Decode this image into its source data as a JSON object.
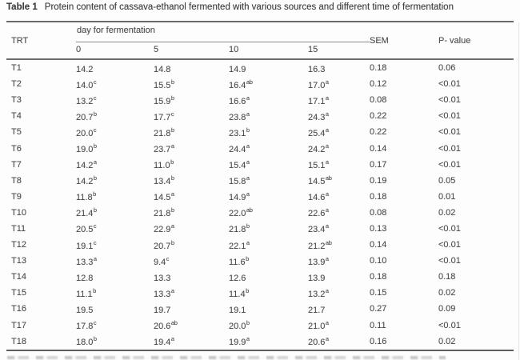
{
  "title": {
    "label": "Table 1",
    "text": "Protein content of cassava-ethanol fermented with various sources and different time of fermentation"
  },
  "table": {
    "col_trt": "TRT",
    "group_header": "day for fermentation",
    "day_cols": [
      "0",
      "5",
      "10",
      "15"
    ],
    "col_sem": "SEM",
    "col_p": "P- value",
    "rows": [
      {
        "trt": "T1",
        "days": [
          [
            "14.2",
            ""
          ],
          [
            "14.8",
            ""
          ],
          [
            "14.9",
            ""
          ],
          [
            "16.3",
            ""
          ]
        ],
        "sem": "0.18",
        "p": "0.06"
      },
      {
        "trt": "T2",
        "days": [
          [
            "14.0",
            "c"
          ],
          [
            "15.5",
            "b"
          ],
          [
            "16.4",
            "ab"
          ],
          [
            "17.0",
            "a"
          ]
        ],
        "sem": "0.12",
        "p": "<0.01"
      },
      {
        "trt": "T3",
        "days": [
          [
            "13.2",
            "c"
          ],
          [
            "15.9",
            "b"
          ],
          [
            "16.6",
            "a"
          ],
          [
            "17.1",
            "a"
          ]
        ],
        "sem": "0.08",
        "p": "<0.01"
      },
      {
        "trt": "T4",
        "days": [
          [
            "20.7",
            "b"
          ],
          [
            "17.7",
            "c"
          ],
          [
            "23.8",
            "a"
          ],
          [
            "24.3",
            "a"
          ]
        ],
        "sem": "0.22",
        "p": "<0.01"
      },
      {
        "trt": "T5",
        "days": [
          [
            "20.0",
            "c"
          ],
          [
            "21.8",
            "b"
          ],
          [
            "23.1",
            "b"
          ],
          [
            "25.4",
            "a"
          ]
        ],
        "sem": "0.22",
        "p": "<0.01"
      },
      {
        "trt": "T6",
        "days": [
          [
            "19.0",
            "b"
          ],
          [
            "23.7",
            "a"
          ],
          [
            "24.4",
            "a"
          ],
          [
            "24.2",
            "a"
          ]
        ],
        "sem": "0.14",
        "p": "<0.01"
      },
      {
        "trt": "T7",
        "days": [
          [
            "14.2",
            "a"
          ],
          [
            "11.0",
            "b"
          ],
          [
            "15.4",
            "a"
          ],
          [
            "15.1",
            "a"
          ]
        ],
        "sem": "0.17",
        "p": "<0.01"
      },
      {
        "trt": "T8",
        "days": [
          [
            "14.2",
            "b"
          ],
          [
            "13.4",
            "b"
          ],
          [
            "15.8",
            "a"
          ],
          [
            "14.5",
            "ab"
          ]
        ],
        "sem": "0.19",
        "p": "0.05"
      },
      {
        "trt": "T9",
        "days": [
          [
            "11.8",
            "b"
          ],
          [
            "14.5",
            "a"
          ],
          [
            "14.9",
            "a"
          ],
          [
            "14.6",
            "a"
          ]
        ],
        "sem": "0.18",
        "p": "0.01"
      },
      {
        "trt": "T10",
        "days": [
          [
            "21.4",
            "b"
          ],
          [
            "21.8",
            "b"
          ],
          [
            "22.0",
            "ab"
          ],
          [
            "22.6",
            "a"
          ]
        ],
        "sem": "0.08",
        "p": "0.02"
      },
      {
        "trt": "T11",
        "days": [
          [
            "20.5",
            "c"
          ],
          [
            "22.9",
            "a"
          ],
          [
            "21.8",
            "b"
          ],
          [
            "23.4",
            "a"
          ]
        ],
        "sem": "0.13",
        "p": "<0.01"
      },
      {
        "trt": "T12",
        "days": [
          [
            "19.1",
            "c"
          ],
          [
            "20.7",
            "b"
          ],
          [
            "22.1",
            "a"
          ],
          [
            "21.2",
            "ab"
          ]
        ],
        "sem": "0.14",
        "p": "<0.01"
      },
      {
        "trt": "T13",
        "days": [
          [
            "13.3",
            "a"
          ],
          [
            "9.4",
            "c"
          ],
          [
            "11.6",
            "b"
          ],
          [
            "13.9",
            "a"
          ]
        ],
        "sem": "0.10",
        "p": "<0.01"
      },
      {
        "trt": "T14",
        "days": [
          [
            "12.8",
            ""
          ],
          [
            "13.3",
            ""
          ],
          [
            "12.6",
            ""
          ],
          [
            "13.9",
            ""
          ]
        ],
        "sem": "0.18",
        "p": "0.18"
      },
      {
        "trt": "T15",
        "days": [
          [
            "11.1",
            "b"
          ],
          [
            "13.3",
            "a"
          ],
          [
            "11.4",
            "b"
          ],
          [
            "13.2",
            "a"
          ]
        ],
        "sem": "0.15",
        "p": "0.02"
      },
      {
        "trt": "T16",
        "days": [
          [
            "19.5",
            ""
          ],
          [
            "19.7",
            ""
          ],
          [
            "19.1",
            ""
          ],
          [
            "21.7",
            ""
          ]
        ],
        "sem": "0.27",
        "p": "0.09"
      },
      {
        "trt": "T17",
        "days": [
          [
            "17.8",
            "c"
          ],
          [
            "20.6",
            "ab"
          ],
          [
            "20.0",
            "b"
          ],
          [
            "21.0",
            "a"
          ]
        ],
        "sem": "0.11",
        "p": "<0.01"
      },
      {
        "trt": "T18",
        "days": [
          [
            "18.0",
            "b"
          ],
          [
            "19.4",
            "a"
          ],
          [
            "19.9",
            "a"
          ],
          [
            "20.6",
            "a"
          ]
        ],
        "sem": "0.16",
        "p": "0.02"
      }
    ]
  }
}
